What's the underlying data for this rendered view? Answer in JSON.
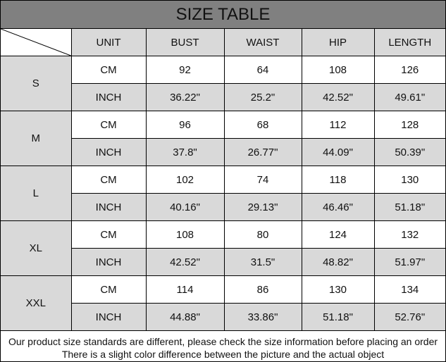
{
  "title": "SIZE TABLE",
  "headers": [
    "UNIT",
    "BUST",
    "WAIST",
    "HIP",
    "LENGTH"
  ],
  "sizes": [
    {
      "size": "S",
      "cm": {
        "unit": "CM",
        "values": [
          "92",
          "64",
          "108",
          "126"
        ]
      },
      "inch": {
        "unit": "INCH",
        "values": [
          "36.22\"",
          "25.2\"",
          "42.52\"",
          "49.61\""
        ]
      }
    },
    {
      "size": "M",
      "cm": {
        "unit": "CM",
        "values": [
          "96",
          "68",
          "112",
          "128"
        ]
      },
      "inch": {
        "unit": "INCH",
        "values": [
          "37.8\"",
          "26.77\"",
          "44.09\"",
          "50.39\""
        ]
      }
    },
    {
      "size": "L",
      "cm": {
        "unit": "CM",
        "values": [
          "102",
          "74",
          "118",
          "130"
        ]
      },
      "inch": {
        "unit": "INCH",
        "values": [
          "40.16\"",
          "29.13\"",
          "46.46\"",
          "51.18\""
        ]
      }
    },
    {
      "size": "XL",
      "cm": {
        "unit": "CM",
        "values": [
          "108",
          "80",
          "124",
          "132"
        ]
      },
      "inch": {
        "unit": "INCH",
        "values": [
          "42.52\"",
          "31.5\"",
          "48.82\"",
          "51.97\""
        ]
      }
    },
    {
      "size": "XXL",
      "cm": {
        "unit": "CM",
        "values": [
          "114",
          "86",
          "130",
          "134"
        ]
      },
      "inch": {
        "unit": "INCH",
        "values": [
          "44.88\"",
          "33.86\"",
          "51.18\"",
          "52.76\""
        ]
      }
    }
  ],
  "footer": [
    "Our product size standards are different, please check the size information before placing an order",
    "There is a slight color difference between the picture and the actual object"
  ],
  "colors": {
    "title_bg": "#808080",
    "cell_gray": "#d9d9d9"
  }
}
